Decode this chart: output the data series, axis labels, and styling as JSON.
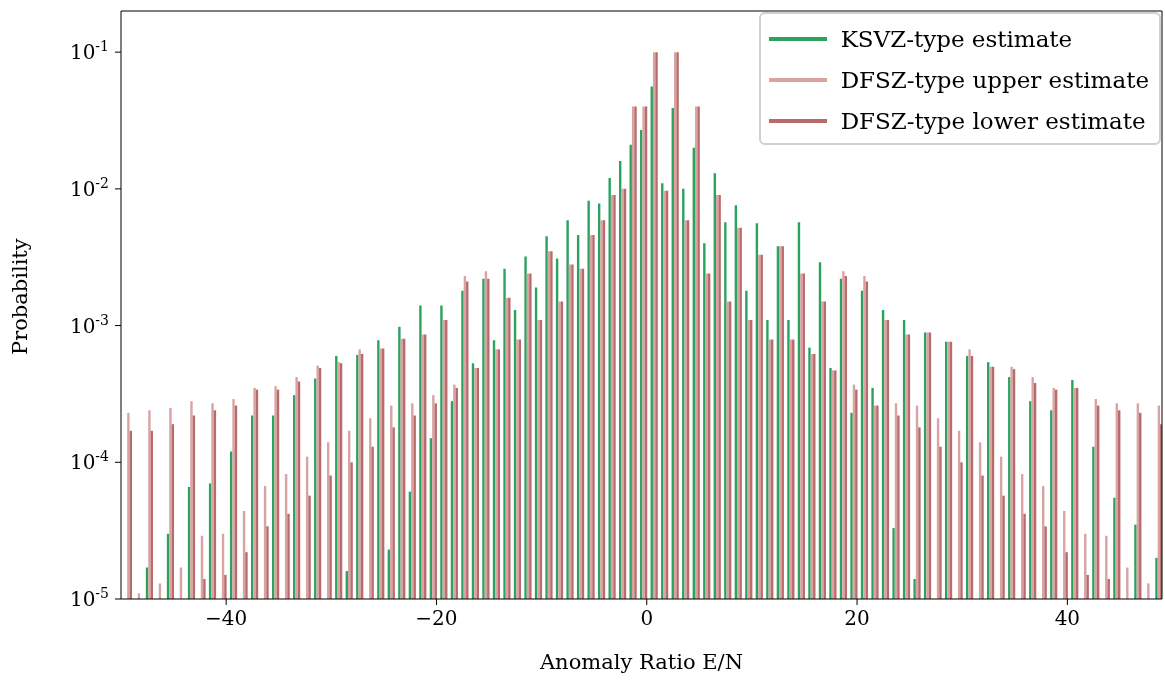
{
  "chart_data": {
    "type": "bar",
    "xlabel": "Anomaly Ratio E/N",
    "ylabel": "Probability",
    "log": "y",
    "legend": "top right",
    "grid": false,
    "x": [
      -49.33,
      -48.33,
      -47.33,
      -46.33,
      -45.33,
      -44.33,
      -43.33,
      -42.33,
      -41.33,
      -40.33,
      -39.33,
      -38.33,
      -37.33,
      -36.33,
      -35.33,
      -34.33,
      -33.33,
      -32.33,
      -31.33,
      -30.33,
      -29.33,
      -28.33,
      -27.33,
      -26.33,
      -25.33,
      -24.33,
      -23.33,
      -22.33,
      -21.33,
      -20.33,
      -19.33,
      -18.33,
      -17.33,
      -16.33,
      -15.33,
      -14.33,
      -13.33,
      -12.33,
      -11.33,
      -10.33,
      -9.33,
      -8.33,
      -7.33,
      -6.33,
      -5.33,
      -4.33,
      -3.33,
      -2.33,
      -1.33,
      -0.33,
      0.67,
      1.67,
      2.67,
      3.67,
      4.67,
      5.67,
      6.67,
      7.67,
      8.67,
      9.67,
      10.67,
      11.67,
      12.67,
      13.67,
      14.67,
      15.67,
      16.67,
      17.67,
      18.67,
      19.67,
      20.67,
      21.67,
      22.67,
      23.67,
      24.67,
      25.67,
      26.67,
      27.67,
      28.67,
      29.67,
      30.67,
      31.67,
      32.67,
      33.67,
      34.67,
      35.67,
      36.67,
      37.67,
      38.67,
      39.67,
      40.67,
      41.67,
      42.67,
      43.67,
      44.67,
      45.67,
      46.67,
      47.67,
      48.67
    ],
    "series": [
      {
        "name": "KSVZ-type estimate",
        "color": "#2ca25f",
        "values": [
          null,
          null,
          1.7e-05,
          null,
          3e-05,
          null,
          6.6e-05,
          null,
          7e-05,
          null,
          0.00012,
          null,
          0.00022,
          null,
          0.00022,
          null,
          0.00031,
          null,
          0.00041,
          null,
          0.0006,
          1.6e-05,
          0.00061,
          null,
          0.00078,
          2.3e-05,
          0.00098,
          6.1e-05,
          0.0014,
          0.00015,
          0.0014,
          0.00028,
          0.0018,
          0.00053,
          0.0022,
          0.00078,
          0.0026,
          0.0013,
          0.0032,
          0.0019,
          0.0045,
          0.0031,
          0.0059,
          0.0046,
          0.0082,
          0.0078,
          0.012,
          0.016,
          0.021,
          0.027,
          0.056,
          0.011,
          0.039,
          0.01,
          0.02,
          0.004,
          0.013,
          0.0057,
          0.0076,
          0.0018,
          0.0056,
          0.0011,
          0.0038,
          0.0011,
          0.0057,
          0.00069,
          0.0029,
          0.00049,
          0.0022,
          0.00023,
          0.0018,
          0.00035,
          0.0013,
          3.3e-05,
          0.0011,
          1.4e-05,
          0.00089,
          null,
          0.00076,
          null,
          0.0006,
          null,
          0.00054,
          null,
          0.00042,
          null,
          0.00028,
          null,
          0.00024,
          null,
          0.0004,
          null,
          0.00013,
          null,
          5.5e-05,
          null,
          3.5e-05,
          null,
          2e-05
        ]
      },
      {
        "name": "DFSZ-type upper estimate",
        "color": "#d9a3a3",
        "values": [
          0.00023,
          1.1e-05,
          0.00024,
          1.3e-05,
          0.00025,
          1.7e-05,
          0.00028,
          2.9e-05,
          0.00027,
          3e-05,
          0.00029,
          4.4e-05,
          0.00035,
          6.7e-05,
          0.00036,
          8.2e-05,
          0.00042,
          0.00011,
          0.00051,
          0.00014,
          0.00054,
          0.00017,
          0.00067,
          0.00021,
          0.00068,
          0.00026,
          0.0008,
          0.00027,
          0.00086,
          0.00031,
          0.0011,
          0.00037,
          0.0023,
          0.00049,
          0.0025,
          0.00067,
          0.0016,
          0.00079,
          0.0024,
          0.0011,
          0.0035,
          0.0015,
          0.0028,
          0.0026,
          0.0046,
          0.0059,
          0.009,
          0.01,
          0.04,
          0.04,
          0.1,
          0.0097,
          0.1,
          0.0059,
          0.04,
          0.0024,
          0.009,
          0.0015,
          0.0052,
          0.0011,
          0.0033,
          0.00079,
          0.0038,
          0.00079,
          0.0024,
          0.00062,
          0.0015,
          0.00047,
          0.0025,
          0.00037,
          0.0023,
          0.00026,
          0.0011,
          0.00027,
          0.00086,
          0.00026,
          0.00089,
          0.00021,
          0.00076,
          0.00017,
          0.00067,
          0.00014,
          0.0005,
          0.00011,
          0.0005,
          8.2e-05,
          0.00042,
          6.7e-05,
          0.00035,
          4.4e-05,
          0.00035,
          3e-05,
          0.00029,
          2.9e-05,
          0.00027,
          1.7e-05,
          0.00027,
          1.3e-05,
          0.00026
        ]
      },
      {
        "name": "DFSZ-type lower estimate",
        "color": "#b86b6b",
        "values": [
          0.00017,
          null,
          0.00017,
          null,
          0.00019,
          null,
          0.00022,
          1.4e-05,
          0.00024,
          1.5e-05,
          0.00026,
          2.2e-05,
          0.00034,
          3.4e-05,
          0.00034,
          4.2e-05,
          0.00039,
          5.7e-05,
          0.00049,
          8e-05,
          0.00053,
          0.0001,
          0.00062,
          0.00013,
          0.00068,
          0.00018,
          0.0008,
          0.00022,
          0.00086,
          0.00027,
          0.0011,
          0.00035,
          0.0021,
          0.00049,
          0.0022,
          0.00067,
          0.0016,
          0.00079,
          0.0024,
          0.0011,
          0.0035,
          0.0015,
          0.0028,
          0.0026,
          0.0046,
          0.0059,
          0.009,
          0.01,
          0.04,
          0.04,
          0.1,
          0.0097,
          0.1,
          0.0059,
          0.04,
          0.0024,
          0.009,
          0.0015,
          0.0052,
          0.0011,
          0.0033,
          0.00079,
          0.0038,
          0.00079,
          0.0024,
          0.00062,
          0.0015,
          0.00047,
          0.0023,
          0.00034,
          0.0021,
          0.00026,
          0.0011,
          0.00022,
          0.00086,
          0.00018,
          0.00089,
          0.00013,
          0.00076,
          0.0001,
          0.0006,
          8e-05,
          0.0005,
          5.7e-05,
          0.00048,
          4.2e-05,
          0.00038,
          3.4e-05,
          0.00034,
          2.2e-05,
          0.00035,
          1.5e-05,
          0.00026,
          1.4e-05,
          0.00024,
          null,
          0.00023,
          null,
          0.00019
        ]
      }
    ],
    "xlim": [
      -50,
      49
    ],
    "xticks": [
      {
        "value": -40,
        "label": "−40"
      },
      {
        "value": -20,
        "label": "−20"
      },
      0,
      20,
      40
    ],
    "ylim": [
      1e-05,
      0.2
    ],
    "yticks": [
      {
        "value": 1e-05,
        "label": "10$^{-5}$"
      },
      {
        "value": 0.0001,
        "label": "10$^{-4}$"
      },
      {
        "value": 0.001,
        "label": "10$^{-3}$"
      },
      {
        "value": 0.01,
        "label": "10$^{-2}$"
      },
      {
        "value": 0.1,
        "label": "10$^{-1}$"
      }
    ]
  }
}
